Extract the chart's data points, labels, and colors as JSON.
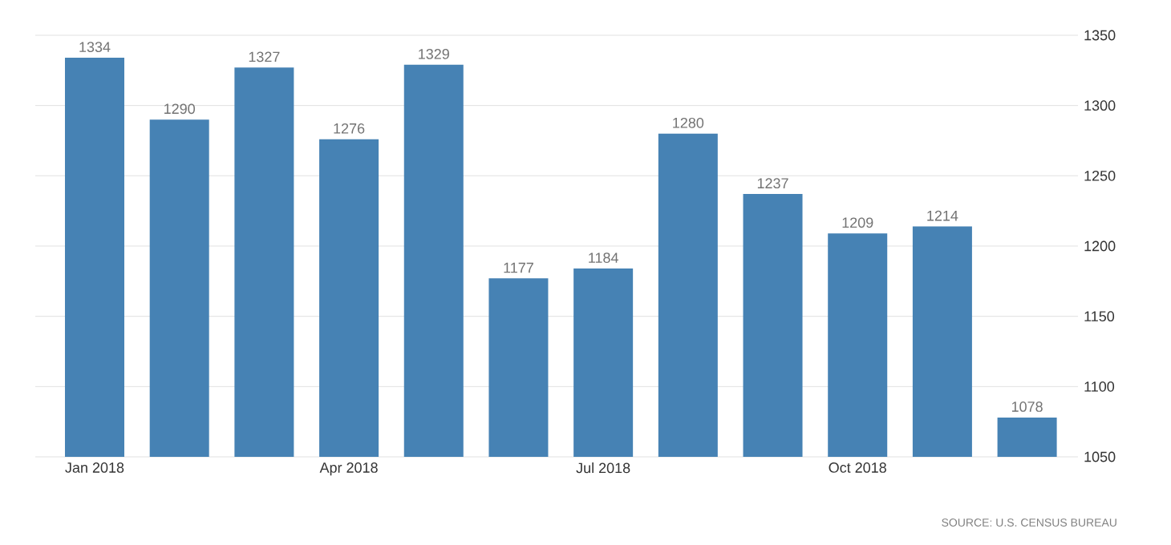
{
  "chart_data": {
    "type": "bar",
    "categories": [
      "Jan 2018",
      null,
      null,
      "Apr 2018",
      null,
      null,
      "Jul 2018",
      null,
      null,
      "Oct 2018",
      null,
      null
    ],
    "values": [
      1334,
      1290,
      1327,
      1276,
      1329,
      1177,
      1184,
      1280,
      1237,
      1209,
      1214,
      1078
    ],
    "color": "#4682b4",
    "ylim": [
      1050,
      1350
    ],
    "yticks": [
      1050,
      1100,
      1150,
      1200,
      1250,
      1300,
      1350
    ],
    "grid": "y",
    "data_labels": true,
    "annotations": [
      "SOURCE: U.S. CENSUS BUREAU"
    ]
  }
}
